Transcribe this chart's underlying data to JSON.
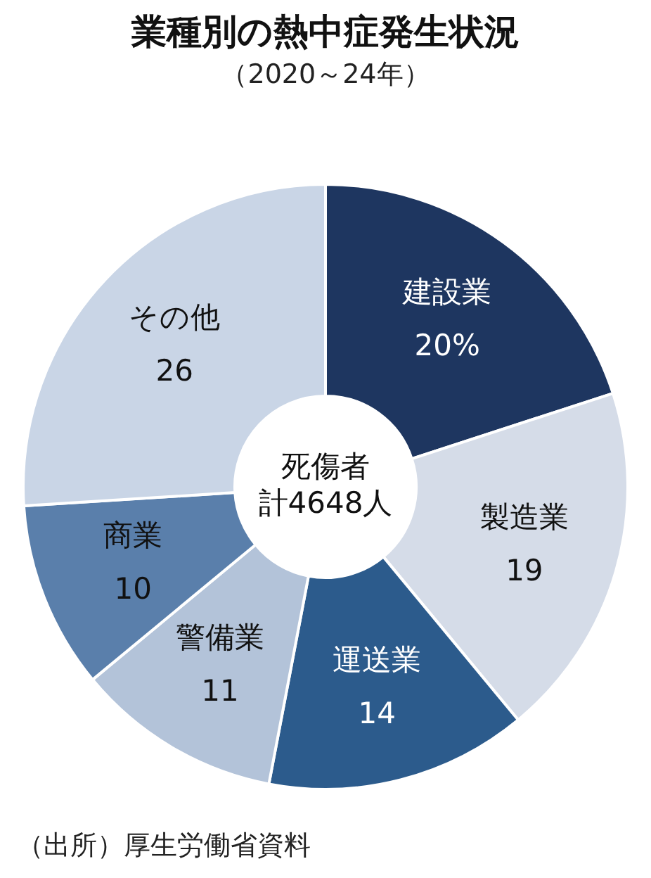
{
  "chart_data": {
    "type": "donut",
    "title": "業種別の熱中症発生状況",
    "subtitle": "（2020～24年）",
    "categories": [
      "建設業",
      "製造業",
      "運送業",
      "警備業",
      "商業",
      "その他"
    ],
    "values": [
      20,
      19,
      14,
      11,
      10,
      26
    ],
    "value_labels": [
      "20%",
      "19",
      "14",
      "11",
      "10",
      "26"
    ],
    "colors": [
      "#1e3660",
      "#d5dce8",
      "#2c5b8c",
      "#b3c3d9",
      "#5a7fab",
      "#c9d5e6"
    ],
    "legend": false,
    "annotations": [
      "死傷者",
      "計4648人",
      "（出所）厚生労働省資料"
    ]
  }
}
